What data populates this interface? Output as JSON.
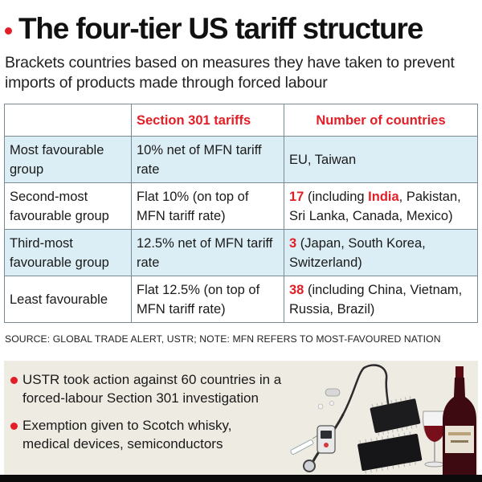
{
  "header": {
    "title": "The four-tier US tariff structure",
    "subtitle": "Brackets countries based on measures they have taken to prevent imports of products made through forced labour"
  },
  "table": {
    "columns": [
      "",
      "Section 301 tariffs",
      "Number of countries"
    ],
    "rows": [
      {
        "group": "Most favourable group",
        "tariff": "10% net of MFN tariff rate",
        "count": "",
        "countries_rest": "EU, Taiwan"
      },
      {
        "group": "Second-most favourable group",
        "tariff": "Flat 10% (on top of MFN tariff rate)",
        "count": "17",
        "countries_pre": " (including ",
        "countries_hl": "India",
        "countries_rest": ", Pakistan, Sri Lanka, Canada, Mexico)"
      },
      {
        "group": "Third-most favourable group",
        "tariff": "12.5% net of MFN tariff rate",
        "count": "3",
        "countries_rest": " (Japan, South Korea, Switzerland)"
      },
      {
        "group": "Least favourable",
        "tariff": "Flat 12.5% (on top of MFN tariff rate)",
        "count": "38",
        "countries_rest": " (including China, Vietnam, Russia, Brazil)"
      }
    ]
  },
  "source": "SOURCE: GLOBAL TRADE ALERT, USTR; NOTE: MFN REFERS TO MOST-FAVOURED NATION",
  "notes": [
    "USTR took action against 60 countries in a forced-labour Section 301 investigation",
    "Exemption given to Scotch whisky, medical devices, semiconductors"
  ],
  "colors": {
    "accent_red": "#e21e26",
    "row_tint": "#dceef5",
    "panel_bg": "#eeebe2"
  },
  "icons": [
    "wine-bottle-icon",
    "wine-glass-icon",
    "stethoscope-icon",
    "syringe-icon",
    "glucose-meter-icon",
    "microchip-icon",
    "pill-icon"
  ]
}
